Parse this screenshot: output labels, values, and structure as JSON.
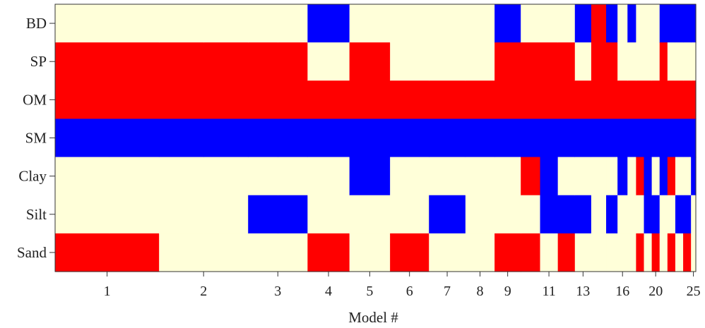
{
  "chart_data": {
    "type": "heatmap",
    "title": "",
    "xlabel": "Model #",
    "ylabel": "",
    "rows": [
      "BD",
      "SP",
      "OM",
      "SM",
      "Clay",
      "Silt",
      "Sand"
    ],
    "x_tick_labels": [
      "1",
      "2",
      "3",
      "4",
      "5",
      "6",
      "7",
      "8",
      "9",
      "11",
      "13",
      "16",
      "20",
      "25"
    ],
    "columns": [
      {
        "model": 1,
        "relative_width": 0.0839,
        "cells": [
          "Y",
          "R",
          "R",
          "B",
          "Y",
          "Y",
          "R"
        ]
      },
      {
        "model": 1,
        "relative_width": 0.0777,
        "cells": [
          "Y",
          "R",
          "R",
          "B",
          "Y",
          "Y",
          "R"
        ]
      },
      {
        "model": 2,
        "relative_width": 0.0692,
        "cells": [
          "Y",
          "R",
          "R",
          "B",
          "Y",
          "Y",
          "Y"
        ]
      },
      {
        "model": 2,
        "relative_width": 0.0692,
        "cells": [
          "Y",
          "R",
          "R",
          "B",
          "Y",
          "Y",
          "Y"
        ]
      },
      {
        "model": 3,
        "relative_width": 0.0462,
        "cells": [
          "Y",
          "R",
          "R",
          "B",
          "Y",
          "B",
          "Y"
        ]
      },
      {
        "model": 3,
        "relative_width": 0.0462,
        "cells": [
          "Y",
          "R",
          "R",
          "B",
          "Y",
          "B",
          "Y"
        ]
      },
      {
        "model": 4,
        "relative_width": 0.0651,
        "cells": [
          "B",
          "Y",
          "R",
          "B",
          "Y",
          "Y",
          "R"
        ]
      },
      {
        "model": 5,
        "relative_width": 0.0631,
        "cells": [
          "Y",
          "R",
          "R",
          "B",
          "B",
          "Y",
          "Y"
        ]
      },
      {
        "model": 6,
        "relative_width": 0.0605,
        "cells": [
          "Y",
          "Y",
          "R",
          "B",
          "Y",
          "Y",
          "R"
        ]
      },
      {
        "model": 7,
        "relative_width": 0.0567,
        "cells": [
          "Y",
          "Y",
          "R",
          "B",
          "Y",
          "B",
          "Y"
        ]
      },
      {
        "model": 8,
        "relative_width": 0.0453,
        "cells": [
          "Y",
          "Y",
          "R",
          "B",
          "Y",
          "Y",
          "Y"
        ]
      },
      {
        "model": 9,
        "relative_width": 0.0407,
        "cells": [
          "B",
          "R",
          "R",
          "B",
          "Y",
          "Y",
          "R"
        ]
      },
      {
        "model": 10,
        "relative_width": 0.03,
        "cells": [
          "Y",
          "R",
          "R",
          "B",
          "R",
          "Y",
          "R"
        ]
      },
      {
        "model": 11,
        "relative_width": 0.0276,
        "cells": [
          "Y",
          "R",
          "R",
          "B",
          "B",
          "B",
          "Y"
        ]
      },
      {
        "model": 12,
        "relative_width": 0.0265,
        "cells": [
          "Y",
          "R",
          "R",
          "B",
          "Y",
          "B",
          "R"
        ]
      },
      {
        "model": 13,
        "relative_width": 0.0254,
        "cells": [
          "B",
          "Y",
          "R",
          "B",
          "Y",
          "B",
          "Y"
        ]
      },
      {
        "model": 14,
        "relative_width": 0.0232,
        "cells": [
          "R",
          "R",
          "R",
          "B",
          "Y",
          "Y",
          "Y"
        ]
      },
      {
        "model": 15,
        "relative_width": 0.0177,
        "cells": [
          "B",
          "R",
          "R",
          "B",
          "Y",
          "B",
          "Y"
        ]
      },
      {
        "model": 16,
        "relative_width": 0.0155,
        "cells": [
          "Y",
          "Y",
          "R",
          "B",
          "B",
          "Y",
          "Y"
        ]
      },
      {
        "model": 17,
        "relative_width": 0.0133,
        "cells": [
          "B",
          "Y",
          "R",
          "B",
          "Y",
          "Y",
          "Y"
        ]
      },
      {
        "model": 18,
        "relative_width": 0.0122,
        "cells": [
          "Y",
          "Y",
          "R",
          "B",
          "R",
          "Y",
          "R"
        ]
      },
      {
        "model": 19,
        "relative_width": 0.0122,
        "cells": [
          "Y",
          "Y",
          "R",
          "B",
          "B",
          "B",
          "Y"
        ]
      },
      {
        "model": 20,
        "relative_width": 0.0122,
        "cells": [
          "Y",
          "Y",
          "R",
          "B",
          "Y",
          "B",
          "R"
        ]
      },
      {
        "model": 21,
        "relative_width": 0.0122,
        "cells": [
          "B",
          "R",
          "R",
          "B",
          "B",
          "Y",
          "Y"
        ]
      },
      {
        "model": 22,
        "relative_width": 0.0122,
        "cells": [
          "B",
          "Y",
          "R",
          "B",
          "R",
          "Y",
          "R"
        ]
      },
      {
        "model": 23,
        "relative_width": 0.0122,
        "cells": [
          "B",
          "Y",
          "R",
          "B",
          "Y",
          "B",
          "Y"
        ]
      },
      {
        "model": 24,
        "relative_width": 0.0122,
        "cells": [
          "B",
          "Y",
          "R",
          "B",
          "Y",
          "B",
          "R"
        ]
      },
      {
        "model": 25,
        "relative_width": 0.0075,
        "cells": [
          "B",
          "Y",
          "R",
          "B",
          "B",
          "Y",
          "Y"
        ]
      }
    ],
    "colors": {
      "R": "#ff0000",
      "B": "#0000ff",
      "Y": "#ffffd9"
    },
    "grid": false,
    "legend": "none"
  }
}
